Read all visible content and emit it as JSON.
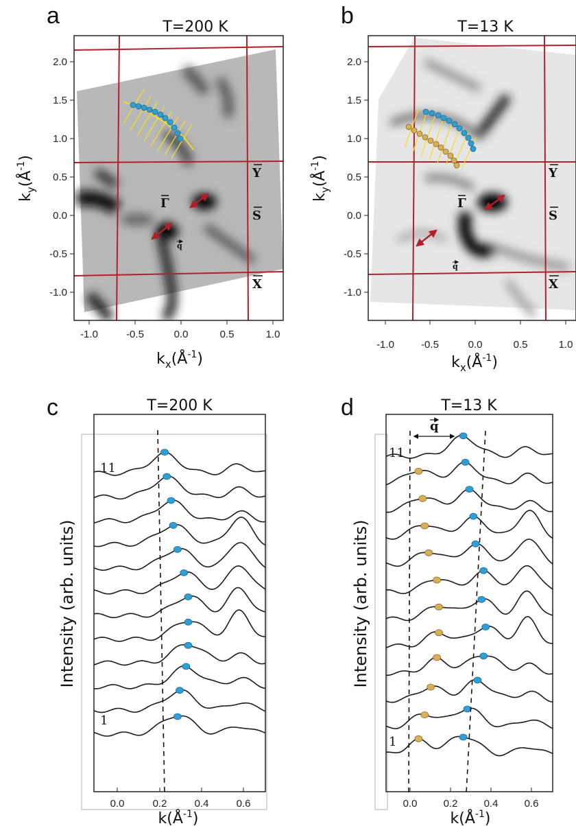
{
  "panels": {
    "a": {
      "label": "a",
      "title": "T=200 K"
    },
    "b": {
      "label": "b",
      "title": "T=13 K"
    },
    "c": {
      "label": "c",
      "title": "T=200 K"
    },
    "d": {
      "label": "d",
      "title": "T=13 K"
    }
  },
  "map_axes": {
    "x_label": "k",
    "x_sub": "x",
    "y_label": "k",
    "y_sub": "y",
    "unit_open": "(Å",
    "unit_sup": "-1",
    "unit_close": ")",
    "x_ticks": [
      "-1.0",
      "-0.5",
      "0.0",
      "0.5",
      "1.0"
    ],
    "y_ticks": [
      "2.0",
      "1.5",
      "1.0",
      "0.5",
      "0.0",
      "-0.5",
      "-1.0"
    ]
  },
  "symmetry_points": {
    "gamma": "Γ",
    "Y": "Y",
    "S": "S",
    "X": "X",
    "q": "q"
  },
  "cut_axes": {
    "x_label": "k(Å",
    "x_sup": "-1",
    "x_close": ")",
    "y_label": "Intensity (arb. units)",
    "x_ticks": [
      "0.0",
      "0.2",
      "0.4",
      "0.6"
    ],
    "curve_top": "11",
    "curve_bottom": "1",
    "q_label": "q"
  },
  "colors": {
    "bz_line": "#b0202a",
    "blue_dot": "#2f9fd6",
    "gold_dot": "#d9b05a",
    "arrow": "#b0202a",
    "yellow": "#f2dc2e"
  },
  "chart_data": [
    {
      "type": "scatter",
      "title": "T=200 K",
      "xlabel": "k(Å-1)",
      "ylabel": "Intensity (arb. units)",
      "xlim": [
        -0.1,
        0.7
      ],
      "series": [
        {
          "x": [
            0.29,
            0.3,
            0.33,
            0.34,
            0.34,
            0.34,
            0.32,
            0.29,
            0.27,
            0.26,
            0.24,
            0.23
          ]
        }
      ]
    },
    {
      "type": "scatter",
      "title": "T=13 K",
      "xlabel": "k(Å-1)",
      "ylabel": "Intensity (arb. units)",
      "xlim": [
        -0.12,
        0.7
      ],
      "series": [
        {
          "x": [
            0.26,
            0.28,
            0.33,
            0.36,
            0.37,
            0.35,
            0.36,
            0.32,
            0.31,
            0.29,
            0.27,
            0.26
          ]
        },
        {
          "x": [
            0.04,
            0.07,
            0.1,
            0.13,
            0.14,
            0.14,
            0.13,
            0.09,
            0.07,
            0.06,
            0.04
          ]
        }
      ]
    }
  ]
}
